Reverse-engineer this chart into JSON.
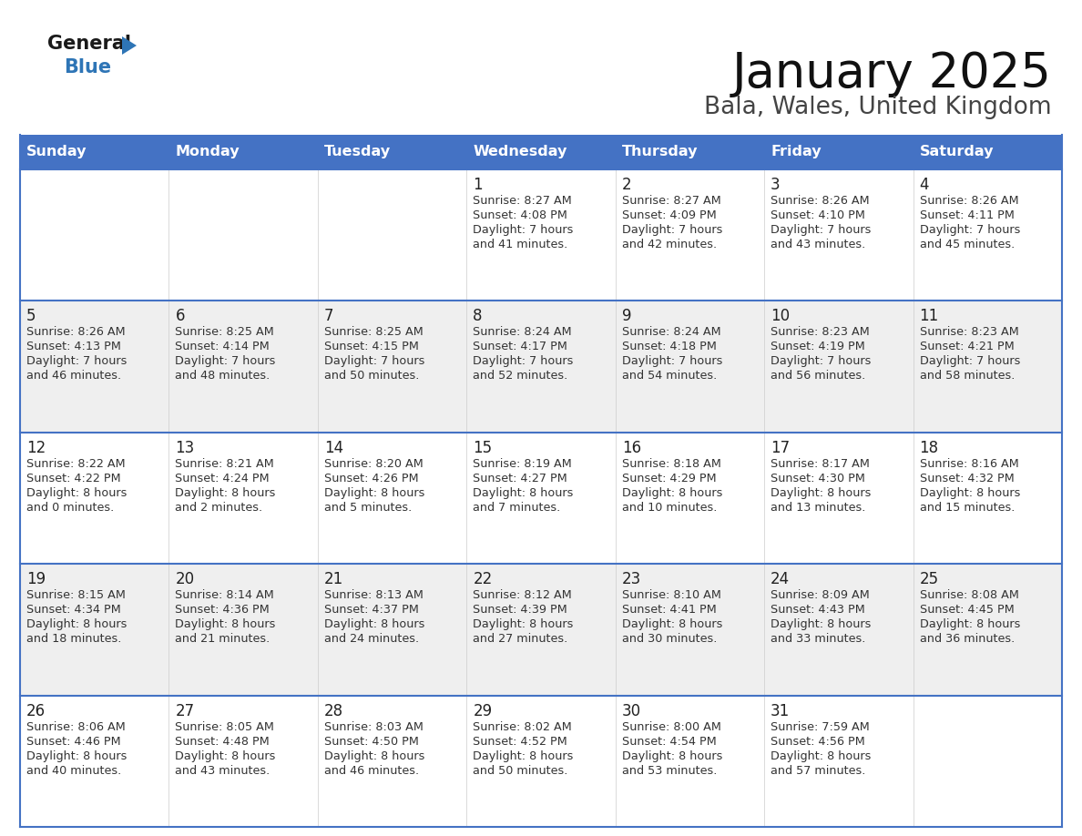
{
  "title": "January 2025",
  "subtitle": "Bala, Wales, United Kingdom",
  "header_color": "#4472C4",
  "header_text_color": "#FFFFFF",
  "row_bg_colors": [
    "#FFFFFF",
    "#EFEFEF"
  ],
  "border_color": "#4472C4",
  "text_color": "#333333",
  "logo_general_color": "#1a1a1a",
  "logo_blue_color": "#2E75B6",
  "logo_triangle_color": "#2E75B6",
  "days_of_week": [
    "Sunday",
    "Monday",
    "Tuesday",
    "Wednesday",
    "Thursday",
    "Friday",
    "Saturday"
  ],
  "calendar_data": [
    [
      {
        "day": "",
        "lines": []
      },
      {
        "day": "",
        "lines": []
      },
      {
        "day": "",
        "lines": []
      },
      {
        "day": "1",
        "lines": [
          "Sunrise: 8:27 AM",
          "Sunset: 4:08 PM",
          "Daylight: 7 hours",
          "and 41 minutes."
        ]
      },
      {
        "day": "2",
        "lines": [
          "Sunrise: 8:27 AM",
          "Sunset: 4:09 PM",
          "Daylight: 7 hours",
          "and 42 minutes."
        ]
      },
      {
        "day": "3",
        "lines": [
          "Sunrise: 8:26 AM",
          "Sunset: 4:10 PM",
          "Daylight: 7 hours",
          "and 43 minutes."
        ]
      },
      {
        "day": "4",
        "lines": [
          "Sunrise: 8:26 AM",
          "Sunset: 4:11 PM",
          "Daylight: 7 hours",
          "and 45 minutes."
        ]
      }
    ],
    [
      {
        "day": "5",
        "lines": [
          "Sunrise: 8:26 AM",
          "Sunset: 4:13 PM",
          "Daylight: 7 hours",
          "and 46 minutes."
        ]
      },
      {
        "day": "6",
        "lines": [
          "Sunrise: 8:25 AM",
          "Sunset: 4:14 PM",
          "Daylight: 7 hours",
          "and 48 minutes."
        ]
      },
      {
        "day": "7",
        "lines": [
          "Sunrise: 8:25 AM",
          "Sunset: 4:15 PM",
          "Daylight: 7 hours",
          "and 50 minutes."
        ]
      },
      {
        "day": "8",
        "lines": [
          "Sunrise: 8:24 AM",
          "Sunset: 4:17 PM",
          "Daylight: 7 hours",
          "and 52 minutes."
        ]
      },
      {
        "day": "9",
        "lines": [
          "Sunrise: 8:24 AM",
          "Sunset: 4:18 PM",
          "Daylight: 7 hours",
          "and 54 minutes."
        ]
      },
      {
        "day": "10",
        "lines": [
          "Sunrise: 8:23 AM",
          "Sunset: 4:19 PM",
          "Daylight: 7 hours",
          "and 56 minutes."
        ]
      },
      {
        "day": "11",
        "lines": [
          "Sunrise: 8:23 AM",
          "Sunset: 4:21 PM",
          "Daylight: 7 hours",
          "and 58 minutes."
        ]
      }
    ],
    [
      {
        "day": "12",
        "lines": [
          "Sunrise: 8:22 AM",
          "Sunset: 4:22 PM",
          "Daylight: 8 hours",
          "and 0 minutes."
        ]
      },
      {
        "day": "13",
        "lines": [
          "Sunrise: 8:21 AM",
          "Sunset: 4:24 PM",
          "Daylight: 8 hours",
          "and 2 minutes."
        ]
      },
      {
        "day": "14",
        "lines": [
          "Sunrise: 8:20 AM",
          "Sunset: 4:26 PM",
          "Daylight: 8 hours",
          "and 5 minutes."
        ]
      },
      {
        "day": "15",
        "lines": [
          "Sunrise: 8:19 AM",
          "Sunset: 4:27 PM",
          "Daylight: 8 hours",
          "and 7 minutes."
        ]
      },
      {
        "day": "16",
        "lines": [
          "Sunrise: 8:18 AM",
          "Sunset: 4:29 PM",
          "Daylight: 8 hours",
          "and 10 minutes."
        ]
      },
      {
        "day": "17",
        "lines": [
          "Sunrise: 8:17 AM",
          "Sunset: 4:30 PM",
          "Daylight: 8 hours",
          "and 13 minutes."
        ]
      },
      {
        "day": "18",
        "lines": [
          "Sunrise: 8:16 AM",
          "Sunset: 4:32 PM",
          "Daylight: 8 hours",
          "and 15 minutes."
        ]
      }
    ],
    [
      {
        "day": "19",
        "lines": [
          "Sunrise: 8:15 AM",
          "Sunset: 4:34 PM",
          "Daylight: 8 hours",
          "and 18 minutes."
        ]
      },
      {
        "day": "20",
        "lines": [
          "Sunrise: 8:14 AM",
          "Sunset: 4:36 PM",
          "Daylight: 8 hours",
          "and 21 minutes."
        ]
      },
      {
        "day": "21",
        "lines": [
          "Sunrise: 8:13 AM",
          "Sunset: 4:37 PM",
          "Daylight: 8 hours",
          "and 24 minutes."
        ]
      },
      {
        "day": "22",
        "lines": [
          "Sunrise: 8:12 AM",
          "Sunset: 4:39 PM",
          "Daylight: 8 hours",
          "and 27 minutes."
        ]
      },
      {
        "day": "23",
        "lines": [
          "Sunrise: 8:10 AM",
          "Sunset: 4:41 PM",
          "Daylight: 8 hours",
          "and 30 minutes."
        ]
      },
      {
        "day": "24",
        "lines": [
          "Sunrise: 8:09 AM",
          "Sunset: 4:43 PM",
          "Daylight: 8 hours",
          "and 33 minutes."
        ]
      },
      {
        "day": "25",
        "lines": [
          "Sunrise: 8:08 AM",
          "Sunset: 4:45 PM",
          "Daylight: 8 hours",
          "and 36 minutes."
        ]
      }
    ],
    [
      {
        "day": "26",
        "lines": [
          "Sunrise: 8:06 AM",
          "Sunset: 4:46 PM",
          "Daylight: 8 hours",
          "and 40 minutes."
        ]
      },
      {
        "day": "27",
        "lines": [
          "Sunrise: 8:05 AM",
          "Sunset: 4:48 PM",
          "Daylight: 8 hours",
          "and 43 minutes."
        ]
      },
      {
        "day": "28",
        "lines": [
          "Sunrise: 8:03 AM",
          "Sunset: 4:50 PM",
          "Daylight: 8 hours",
          "and 46 minutes."
        ]
      },
      {
        "day": "29",
        "lines": [
          "Sunrise: 8:02 AM",
          "Sunset: 4:52 PM",
          "Daylight: 8 hours",
          "and 50 minutes."
        ]
      },
      {
        "day": "30",
        "lines": [
          "Sunrise: 8:00 AM",
          "Sunset: 4:54 PM",
          "Daylight: 8 hours",
          "and 53 minutes."
        ]
      },
      {
        "day": "31",
        "lines": [
          "Sunrise: 7:59 AM",
          "Sunset: 4:56 PM",
          "Daylight: 8 hours",
          "and 57 minutes."
        ]
      },
      {
        "day": "",
        "lines": []
      }
    ]
  ]
}
